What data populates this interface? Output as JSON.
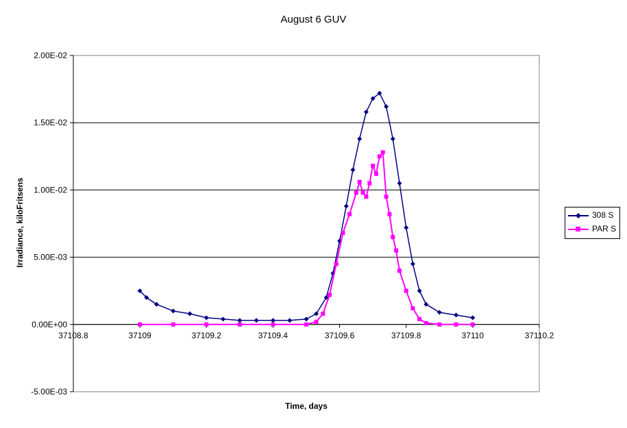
{
  "chart_data": {
    "type": "scatter",
    "title": "August 6 GUV",
    "xlabel": "Time, days",
    "ylabel": "Irradiance, kiloFritsens",
    "xlim": [
      37108.8,
      37110.2
    ],
    "ylim": [
      -0.005,
      0.02
    ],
    "x_ticks": [
      "37108.8",
      "37109",
      "37109.2",
      "37109.4",
      "37109.6",
      "37109.8",
      "37110",
      "37110.2"
    ],
    "y_ticks": [
      "-5.00E-03",
      "0.00E+00",
      "5.00E-03",
      "1.00E-02",
      "1.50E-02",
      "2.00E-02"
    ],
    "grid": "horizontal",
    "legend": "right",
    "series": [
      {
        "name": "308 S",
        "color": "#000080",
        "marker": "diamond",
        "x": [
          37109.0,
          37109.02,
          37109.05,
          37109.1,
          37109.15,
          37109.2,
          37109.25,
          37109.3,
          37109.35,
          37109.4,
          37109.45,
          37109.5,
          37109.53,
          37109.56,
          37109.58,
          37109.6,
          37109.62,
          37109.64,
          37109.66,
          37109.68,
          37109.7,
          37109.72,
          37109.74,
          37109.76,
          37109.78,
          37109.8,
          37109.82,
          37109.84,
          37109.86,
          37109.9,
          37109.95,
          37110.0
        ],
        "y": [
          0.0025,
          0.002,
          0.0015,
          0.001,
          0.0008,
          0.0005,
          0.0004,
          0.0003,
          0.0003,
          0.0003,
          0.0003,
          0.0004,
          0.0008,
          0.002,
          0.0038,
          0.0062,
          0.0088,
          0.0115,
          0.0138,
          0.0158,
          0.0168,
          0.0172,
          0.0162,
          0.0138,
          0.0105,
          0.0072,
          0.0045,
          0.0025,
          0.0015,
          0.0009,
          0.0007,
          0.0005
        ]
      },
      {
        "name": "PAR S",
        "color": "#ff00ff",
        "marker": "square",
        "x": [
          37109.0,
          37109.1,
          37109.2,
          37109.3,
          37109.4,
          37109.5,
          37109.53,
          37109.55,
          37109.57,
          37109.59,
          37109.61,
          37109.63,
          37109.65,
          37109.66,
          37109.67,
          37109.68,
          37109.69,
          37109.7,
          37109.71,
          37109.72,
          37109.73,
          37109.74,
          37109.75,
          37109.76,
          37109.77,
          37109.78,
          37109.8,
          37109.82,
          37109.84,
          37109.86,
          37109.9,
          37109.95,
          37110.0
        ],
        "y": [
          0.0,
          0.0,
          0.0,
          0.0,
          0.0,
          0.0,
          0.0002,
          0.0008,
          0.0022,
          0.0045,
          0.0068,
          0.0082,
          0.0098,
          0.0106,
          0.0098,
          0.0095,
          0.0105,
          0.0118,
          0.0112,
          0.0125,
          0.0128,
          0.0095,
          0.0082,
          0.0065,
          0.0055,
          0.004,
          0.0025,
          0.0012,
          0.0004,
          0.0001,
          0.0,
          0.0,
          0.0
        ]
      }
    ]
  }
}
